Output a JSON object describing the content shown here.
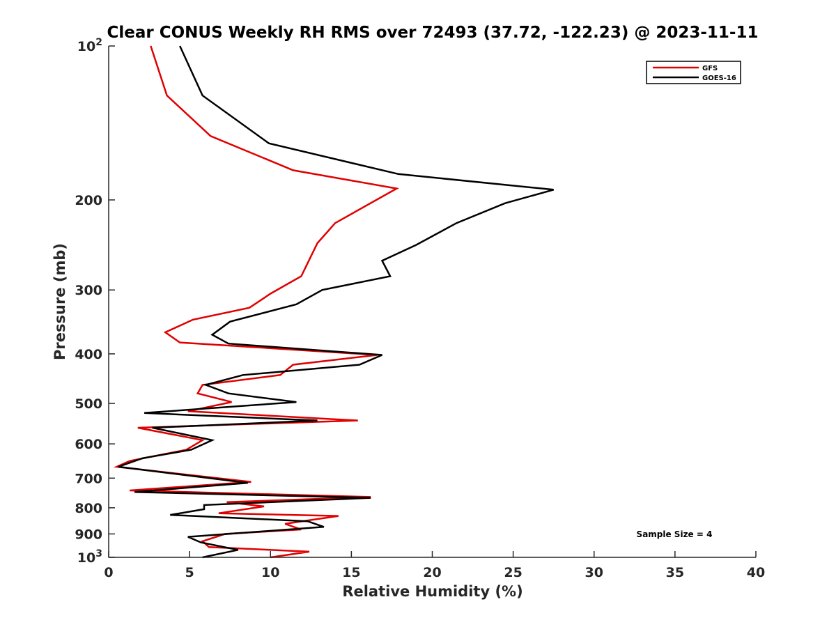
{
  "chart_data": {
    "type": "line",
    "title": "Clear CONUS Weekly RH RMS over 72493 (37.72, -122.23) @ 2023-11-11",
    "xlabel": "Relative Humidity (%)",
    "ylabel": "Pressure (mb)",
    "xlim": [
      0,
      40
    ],
    "ylim": [
      100,
      1000
    ],
    "yscale": "log",
    "yreversed": true,
    "xticks": [
      0,
      5,
      10,
      15,
      20,
      25,
      30,
      35,
      40
    ],
    "xtick_labels": [
      "0",
      "5",
      "10",
      "15",
      "20",
      "25",
      "30",
      "35",
      "40"
    ],
    "yticks": [
      100,
      200,
      300,
      400,
      500,
      600,
      700,
      800,
      900,
      1000
    ],
    "ytick_labels": [
      {
        "base": "10",
        "exp": "2"
      },
      {
        "base": "200",
        "exp": ""
      },
      {
        "base": "300",
        "exp": ""
      },
      {
        "base": "400",
        "exp": ""
      },
      {
        "base": "500",
        "exp": ""
      },
      {
        "base": "600",
        "exp": ""
      },
      {
        "base": "700",
        "exp": ""
      },
      {
        "base": "800",
        "exp": ""
      },
      {
        "base": "900",
        "exp": ""
      },
      {
        "base": "10",
        "exp": "3"
      }
    ],
    "grid": false,
    "legend_position": "top-right",
    "annotation": "Sample Size = 4",
    "series": [
      {
        "name": "GFS",
        "color": "#e00000",
        "points": [
          [
            2.6,
            100
          ],
          [
            3.6,
            125
          ],
          [
            6.3,
            150
          ],
          [
            11.4,
            175
          ],
          [
            17.8,
            190
          ],
          [
            14,
            222
          ],
          [
            12.9,
            243
          ],
          [
            11.9,
            282
          ],
          [
            10,
            305
          ],
          [
            8.7,
            325
          ],
          [
            5.2,
            343
          ],
          [
            3.5,
            363
          ],
          [
            4.4,
            380
          ],
          [
            16.6,
            402
          ],
          [
            11.4,
            420
          ],
          [
            10.6,
            440
          ],
          [
            5.8,
            460
          ],
          [
            5.5,
            478
          ],
          [
            7.6,
            497
          ],
          [
            4.9,
            518
          ],
          [
            15.4,
            540
          ],
          [
            1.8,
            558
          ],
          [
            5.8,
            590
          ],
          [
            4.8,
            616
          ],
          [
            1.3,
            648
          ],
          [
            0.5,
            665
          ],
          [
            8.8,
            712
          ],
          [
            1.3,
            740
          ],
          [
            16.2,
            762
          ],
          [
            7.3,
            780
          ],
          [
            9.6,
            795
          ],
          [
            6.8,
            820
          ],
          [
            14.2,
            830
          ],
          [
            10.9,
            860
          ],
          [
            11.9,
            882
          ],
          [
            7.2,
            900
          ],
          [
            5.8,
            930
          ],
          [
            6.2,
            955
          ],
          [
            12.4,
            975
          ],
          [
            10,
            1000
          ]
        ]
      },
      {
        "name": "GOES-16",
        "color": "#000000",
        "points": [
          [
            4.4,
            100
          ],
          [
            5.8,
            125
          ],
          [
            9.9,
            155
          ],
          [
            17.9,
            178
          ],
          [
            27.5,
            191
          ],
          [
            24.5,
            203
          ],
          [
            21.5,
            222
          ],
          [
            19,
            245
          ],
          [
            16.9,
            263
          ],
          [
            17.4,
            282
          ],
          [
            13.2,
            300
          ],
          [
            11.6,
            320
          ],
          [
            7.5,
            346
          ],
          [
            6.4,
            367
          ],
          [
            7.4,
            382
          ],
          [
            16.9,
            402
          ],
          [
            15.5,
            420
          ],
          [
            8.3,
            440
          ],
          [
            6,
            460
          ],
          [
            7.4,
            478
          ],
          [
            11.6,
            497
          ],
          [
            2.2,
            522
          ],
          [
            12.9,
            540
          ],
          [
            2.7,
            558
          ],
          [
            6.4,
            590
          ],
          [
            5.1,
            616
          ],
          [
            2.1,
            640
          ],
          [
            0.6,
            665
          ],
          [
            8.6,
            715
          ],
          [
            1.6,
            745
          ],
          [
            16.2,
            765
          ],
          [
            5.9,
            790
          ],
          [
            5.9,
            805
          ],
          [
            3.8,
            826
          ],
          [
            12.3,
            850
          ],
          [
            13.3,
            872
          ],
          [
            4.9,
            912
          ],
          [
            5.7,
            935
          ],
          [
            8,
            967
          ],
          [
            5.8,
            1000
          ]
        ]
      }
    ]
  }
}
